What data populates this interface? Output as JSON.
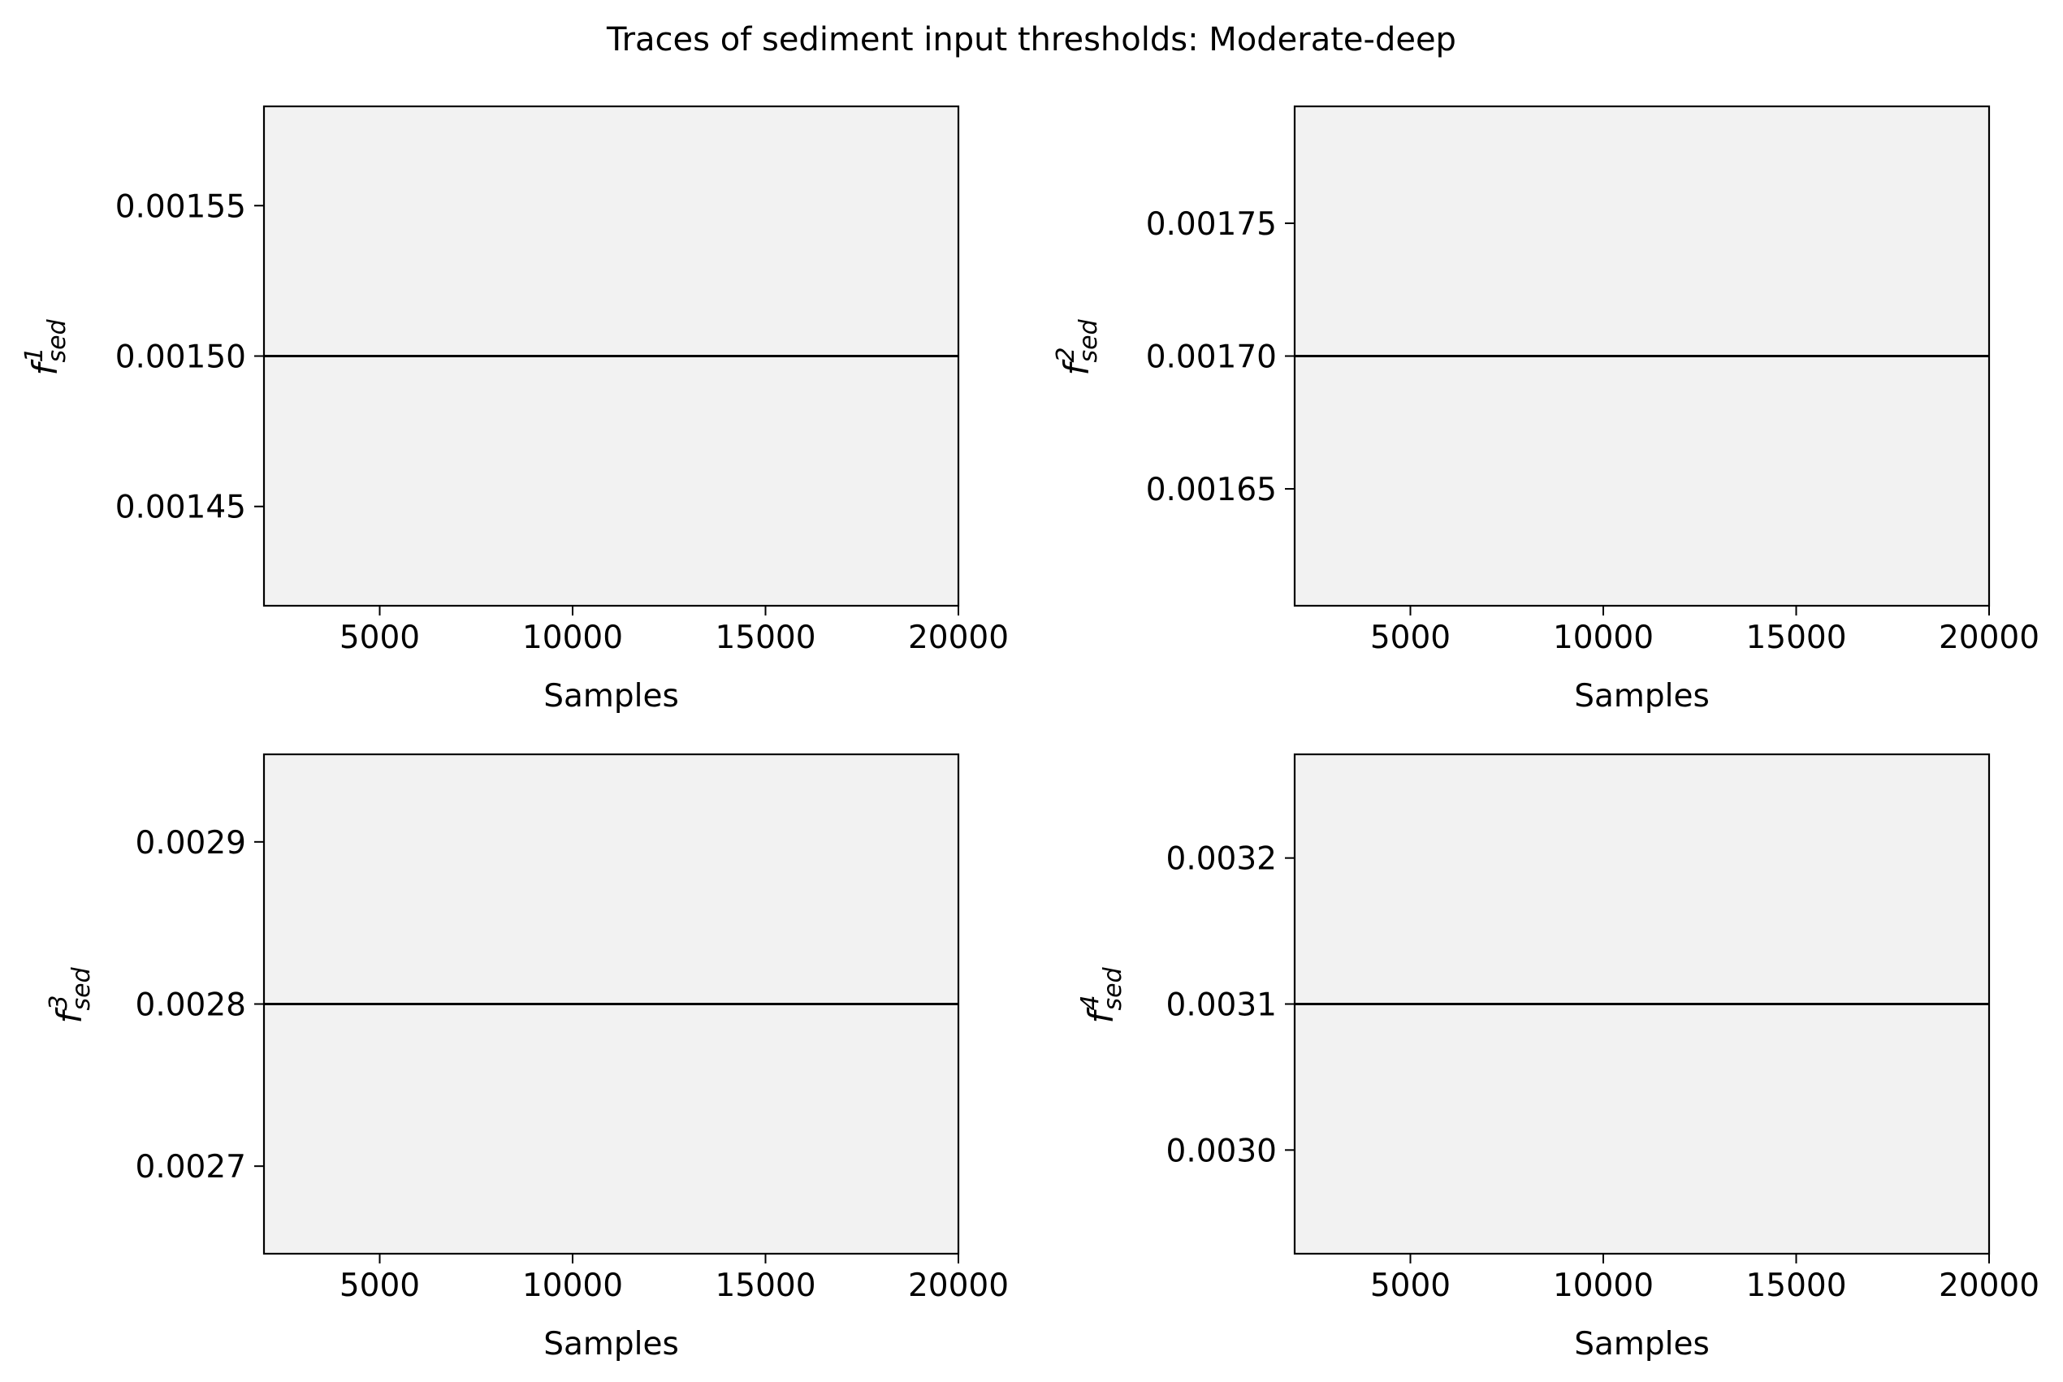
{
  "chart_data": {
    "title": "Traces of sediment input thresholds: Moderate-deep",
    "panels": [
      {
        "type": "line",
        "ylabel": {
          "symbol": "f",
          "sup": "1",
          "sub": "sed"
        },
        "xlabel": "Samples",
        "xlim": [
          2000,
          20000
        ],
        "xticks": [
          5000,
          10000,
          15000,
          20000
        ],
        "xtick_labels": [
          "5000",
          "10000",
          "15000",
          "20000"
        ],
        "ylim": [
          0.001417,
          0.001583
        ],
        "yticks": [
          0.00145,
          0.0015,
          0.00155
        ],
        "ytick_labels": [
          "0.00145",
          "0.00150",
          "0.00155"
        ],
        "series": [
          {
            "x": [
              2000,
              20000
            ],
            "y": [
              0.0015,
              0.0015
            ]
          }
        ]
      },
      {
        "type": "line",
        "ylabel": {
          "symbol": "f",
          "sup": "2",
          "sub": "sed"
        },
        "xlabel": "Samples",
        "xlim": [
          2000,
          20000
        ],
        "xticks": [
          5000,
          10000,
          15000,
          20000
        ],
        "xtick_labels": [
          "5000",
          "10000",
          "15000",
          "20000"
        ],
        "ylim": [
          0.001606,
          0.001794
        ],
        "yticks": [
          0.00165,
          0.0017,
          0.00175
        ],
        "ytick_labels": [
          "0.00165",
          "0.00170",
          "0.00175"
        ],
        "series": [
          {
            "x": [
              2000,
              20000
            ],
            "y": [
              0.0017,
              0.0017
            ]
          }
        ]
      },
      {
        "type": "line",
        "ylabel": {
          "symbol": "f",
          "sup": "3",
          "sub": "sed"
        },
        "xlabel": "Samples",
        "xlim": [
          2000,
          20000
        ],
        "xticks": [
          5000,
          10000,
          15000,
          20000
        ],
        "xtick_labels": [
          "5000",
          "10000",
          "15000",
          "20000"
        ],
        "ylim": [
          0.002646,
          0.002954
        ],
        "yticks": [
          0.0027,
          0.0028,
          0.0029
        ],
        "ytick_labels": [
          "0.0027",
          "0.0028",
          "0.0029"
        ],
        "series": [
          {
            "x": [
              2000,
              20000
            ],
            "y": [
              0.0028,
              0.0028
            ]
          }
        ]
      },
      {
        "type": "line",
        "ylabel": {
          "symbol": "f",
          "sup": "4",
          "sub": "sed"
        },
        "xlabel": "Samples",
        "xlim": [
          2000,
          20000
        ],
        "xticks": [
          5000,
          10000,
          15000,
          20000
        ],
        "xtick_labels": [
          "5000",
          "10000",
          "15000",
          "20000"
        ],
        "ylim": [
          0.002929,
          0.003271
        ],
        "yticks": [
          0.003,
          0.0031,
          0.0032
        ],
        "ytick_labels": [
          "0.0030",
          "0.0031",
          "0.0032"
        ],
        "series": [
          {
            "x": [
              2000,
              20000
            ],
            "y": [
              0.0031,
              0.0031
            ]
          }
        ]
      }
    ],
    "grid": false,
    "legend": "none",
    "colors": {
      "axes_bg": "#f2f2f2",
      "line": "#000000",
      "spine": "#000000"
    }
  }
}
